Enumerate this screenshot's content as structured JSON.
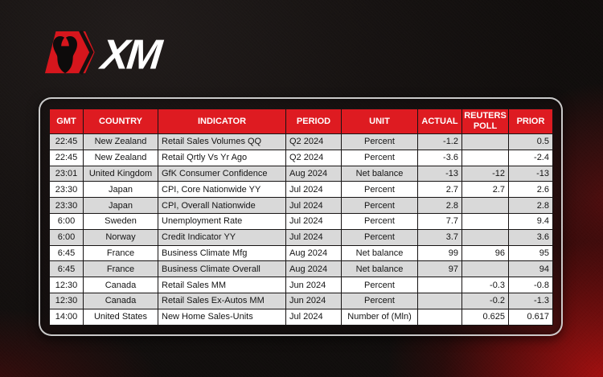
{
  "logo": {
    "text": "XM",
    "badge_color": "#d6161d",
    "bull_color": "#0d0b0b"
  },
  "colors": {
    "header_red": "#de1b21",
    "row_shaded": "#d9d9d9",
    "row_plain": "#ffffff",
    "frame_border": "#dadada",
    "corner_glow_red": "#a01010",
    "background_dark": "#171312"
  },
  "table": {
    "columns": [
      {
        "key": "gmt",
        "label": "GMT",
        "align": "center"
      },
      {
        "key": "country",
        "label": "COUNTRY",
        "align": "center"
      },
      {
        "key": "indicator",
        "label": "INDICATOR",
        "align": "left"
      },
      {
        "key": "period",
        "label": "PERIOD",
        "align": "left"
      },
      {
        "key": "unit",
        "label": "UNIT",
        "align": "center"
      },
      {
        "key": "actual",
        "label": "ACTUAL",
        "align": "right"
      },
      {
        "key": "poll",
        "label": "REUTERS POLL",
        "align": "right"
      },
      {
        "key": "prior",
        "label": "PRIOR",
        "align": "right"
      }
    ],
    "rows": [
      {
        "gmt": "22:45",
        "country": "New Zealand",
        "indicator": "Retail Sales Volumes QQ",
        "period": "Q2 2024",
        "unit": "Percent",
        "actual": "-1.2",
        "poll": "",
        "prior": "0.5"
      },
      {
        "gmt": "22:45",
        "country": "New Zealand",
        "indicator": "Retail Qrtly Vs Yr Ago",
        "period": "Q2 2024",
        "unit": "Percent",
        "actual": "-3.6",
        "poll": "",
        "prior": "-2.4"
      },
      {
        "gmt": "23:01",
        "country": "United Kingdom",
        "indicator": "GfK Consumer Confidence",
        "period": "Aug 2024",
        "unit": "Net balance",
        "actual": "-13",
        "poll": "-12",
        "prior": "-13"
      },
      {
        "gmt": "23:30",
        "country": "Japan",
        "indicator": "CPI, Core Nationwide YY",
        "period": "Jul 2024",
        "unit": "Percent",
        "actual": "2.7",
        "poll": "2.7",
        "prior": "2.6"
      },
      {
        "gmt": "23:30",
        "country": "Japan",
        "indicator": "CPI, Overall Nationwide",
        "period": "Jul 2024",
        "unit": "Percent",
        "actual": "2.8",
        "poll": "",
        "prior": "2.8"
      },
      {
        "gmt": "6:00",
        "country": "Sweden",
        "indicator": "Unemployment Rate",
        "period": "Jul 2024",
        "unit": "Percent",
        "actual": "7.7",
        "poll": "",
        "prior": "9.4"
      },
      {
        "gmt": "6:00",
        "country": "Norway",
        "indicator": "Credit Indicator YY",
        "period": "Jul 2024",
        "unit": "Percent",
        "actual": "3.7",
        "poll": "",
        "prior": "3.6"
      },
      {
        "gmt": "6:45",
        "country": "France",
        "indicator": "Business Climate Mfg",
        "period": "Aug 2024",
        "unit": "Net balance",
        "actual": "99",
        "poll": "96",
        "prior": "95"
      },
      {
        "gmt": "6:45",
        "country": "France",
        "indicator": "Business Climate Overall",
        "period": "Aug 2024",
        "unit": "Net balance",
        "actual": "97",
        "poll": "",
        "prior": "94"
      },
      {
        "gmt": "12:30",
        "country": "Canada",
        "indicator": "Retail Sales MM",
        "period": "Jun 2024",
        "unit": "Percent",
        "actual": "",
        "poll": "-0.3",
        "prior": "-0.8"
      },
      {
        "gmt": "12:30",
        "country": "Canada",
        "indicator": "Retail Sales Ex-Autos MM",
        "period": "Jun 2024",
        "unit": "Percent",
        "actual": "",
        "poll": "-0.2",
        "prior": "-1.3"
      },
      {
        "gmt": "14:00",
        "country": "United States",
        "indicator": "New Home Sales-Units",
        "period": "Jul 2024",
        "unit": "Number of (Mln)",
        "actual": "",
        "poll": "0.625",
        "prior": "0.617"
      }
    ]
  }
}
